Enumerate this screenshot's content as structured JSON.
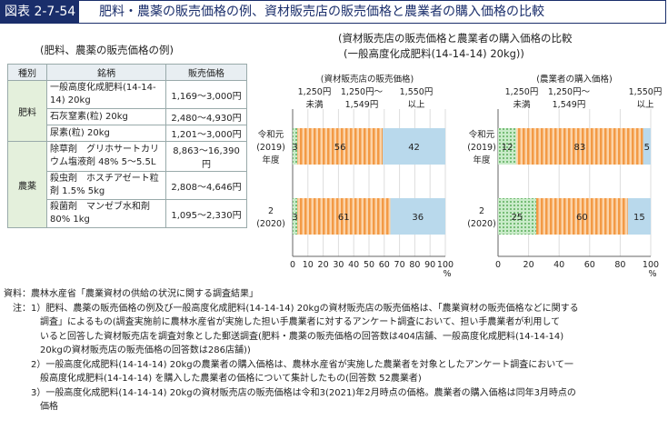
{
  "header": {
    "figure_label": "図表 2-7-54",
    "title": "肥料・農薬の販売価格の例、資材販売店の販売価格と農業者の購入価格の比較"
  },
  "table": {
    "title": "(肥料、農薬の販売価格の例)",
    "columns": [
      "種別",
      "銘柄",
      "販売価格"
    ],
    "groups": [
      {
        "category": "肥料",
        "rows": [
          {
            "product": "一般高度化成肥料(14-14-14) 20kg",
            "price": "1,169～3,000円"
          },
          {
            "product": "石灰窒素(粒) 20kg",
            "price": "2,480～4,930円"
          },
          {
            "product": "尿素(粒) 20kg",
            "price": "1,201～3,000円"
          }
        ]
      },
      {
        "category": "農薬",
        "rows": [
          {
            "product": "除草剤　グリホサートカリウム塩液剤 48% 5～5.5L",
            "price": "8,863～16,390円"
          },
          {
            "product": "殺虫剤　ホスチアゼート粒剤 1.5% 5kg",
            "price": "2,808～4,646円"
          },
          {
            "product": "殺菌剤　マンゼブ水和剤 80% 1kg",
            "price": "1,095～2,330円"
          }
        ]
      }
    ]
  },
  "comparison": {
    "title_line1": "(資材販売店の販売価格と農業者の購入価格の比較",
    "title_line2": "(一般高度化成肥料(14-14-14) 20kg))"
  },
  "chart_data": [
    {
      "type": "bar",
      "orientation": "horizontal",
      "stacked": true,
      "title": "(資材販売店の販売価格)",
      "categories": [
        "令和元(2019)年度",
        "2(2020)"
      ],
      "category_lines": [
        [
          "令和元",
          "(2019)",
          "年度"
        ],
        [
          "2",
          "(2020)"
        ]
      ],
      "series": [
        {
          "name": "1,250円未満",
          "values": [
            3,
            3
          ],
          "color": "#8ccf8c"
        },
        {
          "name": "1,250円～1,549円",
          "values": [
            56,
            61
          ],
          "color": "#f4a460"
        },
        {
          "name": "1,550円以上",
          "values": [
            42,
            36
          ],
          "color": "#b9d9ec"
        }
      ],
      "legend_lines": [
        [
          "1,250円",
          "未満"
        ],
        [
          "1,250円～",
          "1,549円"
        ],
        [
          "1,550円",
          "以上"
        ]
      ],
      "xlim": [
        0,
        100
      ],
      "x_ticks": [
        "0",
        "10",
        "20",
        "30",
        "40",
        "50",
        "60",
        "70",
        "80",
        "90",
        "100"
      ],
      "unit": "%"
    },
    {
      "type": "bar",
      "orientation": "horizontal",
      "stacked": true,
      "title": "(農業者の購入価格)",
      "categories": [
        "令和元(2019)年度",
        "2(2020)"
      ],
      "category_lines": [
        [
          "令和元",
          "(2019)",
          "年度"
        ],
        [
          "2",
          "(2020)"
        ]
      ],
      "series": [
        {
          "name": "1,250円未満",
          "values": [
            12,
            25
          ],
          "color": "#8ccf8c"
        },
        {
          "name": "1,250円～1,549円",
          "values": [
            83,
            60
          ],
          "color": "#f4a460"
        },
        {
          "name": "1,550円以上",
          "values": [
            5,
            15
          ],
          "color": "#b9d9ec"
        }
      ],
      "legend_lines": [
        [
          "1,250円",
          "未満"
        ],
        [
          "1,250円～",
          "1,549円"
        ],
        [
          "1,550円",
          "以上"
        ]
      ],
      "xlim": [
        0,
        100
      ],
      "x_ticks": [
        "0",
        "20",
        "40",
        "60",
        "80",
        "100"
      ],
      "unit": "%"
    }
  ],
  "notes": [
    "資料：農林水産省「農業資材の供給の状況に関する調査結果」",
    "　注：1）肥料、農薬の販売価格の例及び一般高度化成肥料(14-14-14) 20kgの資材販売店の販売価格は、「農業資材の販売価格などに関する",
    "　　　　調査」によるもの(調査実施前に農林水産省が実施した担い手農業者に対するアンケート調査において、担い手農業者が利用して",
    "　　　　いると回答した資材販売店を調査対象とした郵送調査(肥料・農薬の販売価格の回答数は404店舗、一般高度化成肥料(14-14-14)",
    "　　　　20kgの資材販売店の販売価格の回答数は286店舗))",
    "　　　2）一般高度化成肥料(14-14-14) 20kgの農業者の購入価格は、農林水産省が実施した農業者を対象としたアンケート調査において一",
    "　　　　般高度化成肥料(14-14-14) を購入した農業者の価格について集計したもの(回答数 52農業者)",
    "　　　3）一般高度化成肥料(14-14-14) 20kgの資材販売店の販売価格は令和3(2021)年2月時点の価格。農業者の購入価格は同年3月時点の",
    "　　　　価格"
  ]
}
